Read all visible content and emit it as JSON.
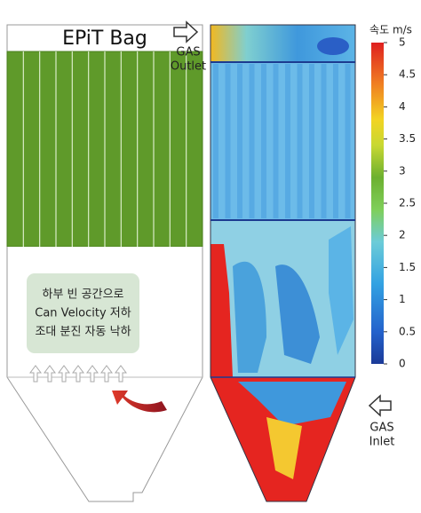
{
  "diagram": {
    "bag_label": "EPiT Bag",
    "annotation_lines": [
      "하부 빈 공간으로",
      "Can Velocity 저하",
      "조대 분진 자동 낙하"
    ],
    "outlet_label": [
      "GAS",
      "Outlet"
    ],
    "inlet_label": [
      "GAS",
      "Inlet"
    ]
  },
  "colorbar": {
    "title": "속도 m/s",
    "ticks": [
      0,
      0.5,
      1,
      1.5,
      2,
      2.5,
      3,
      3.5,
      4,
      4.5,
      5
    ]
  }
}
